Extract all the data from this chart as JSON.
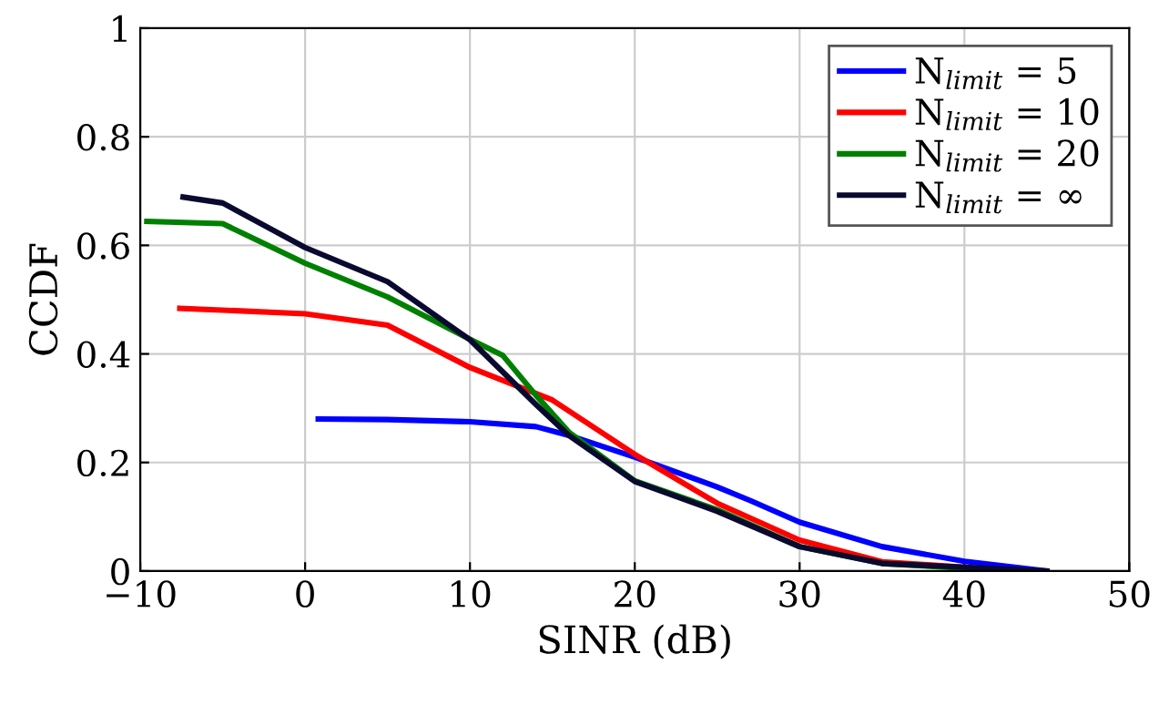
{
  "chart_data": {
    "type": "line",
    "xlabel": "SINR (dB)",
    "ylabel": "CCDF",
    "xlim": [
      -10,
      50
    ],
    "ylim": [
      0,
      1
    ],
    "xticks": [
      {
        "value": -10,
        "label": "−10"
      },
      0,
      10,
      20,
      30,
      40,
      50
    ],
    "yticks": [
      0,
      0.2,
      0.4,
      0.6,
      0.8,
      1
    ],
    "grid": true,
    "legend": "top right",
    "line_style": "solid",
    "marker": "none",
    "series": [
      {
        "name": "N$_{limit}$ = 5",
        "color": "#0000ff",
        "x": [
          0.8,
          5,
          10,
          14,
          16,
          20,
          25,
          27,
          30,
          35,
          40,
          45
        ],
        "values": [
          0.28,
          0.279,
          0.275,
          0.266,
          0.25,
          0.21,
          0.155,
          0.13,
          0.09,
          0.045,
          0.018,
          0
        ]
      },
      {
        "name": "N$_{limit}$ = 10",
        "color": "#ff0000",
        "x": [
          -7.6,
          0,
          5,
          10,
          15,
          20,
          25,
          30,
          35,
          40,
          43
        ],
        "values": [
          0.484,
          0.474,
          0.453,
          0.375,
          0.315,
          0.215,
          0.125,
          0.057,
          0.017,
          0.007,
          0
        ]
      },
      {
        "name": "N$_{limit}$ = 20",
        "color": "#008000",
        "x": [
          -9.6,
          -5,
          0,
          5,
          10,
          12,
          14,
          16,
          20,
          25,
          30,
          35,
          43
        ],
        "values": [
          0.644,
          0.64,
          0.567,
          0.505,
          0.427,
          0.397,
          0.324,
          0.256,
          0.166,
          0.113,
          0.045,
          0.014,
          0
        ]
      },
      {
        "name": "N$_{limit}$ = ∞",
        "color": "#0a0a30",
        "x": [
          -7.4,
          -5,
          0,
          5,
          10,
          14,
          16,
          20,
          25,
          30,
          35,
          45
        ],
        "values": [
          0.689,
          0.678,
          0.596,
          0.533,
          0.426,
          0.307,
          0.25,
          0.165,
          0.11,
          0.045,
          0.014,
          0
        ]
      }
    ]
  }
}
